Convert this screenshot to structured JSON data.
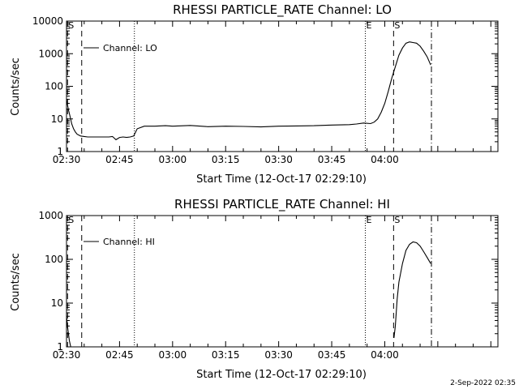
{
  "footer": {
    "timestamp": "2-Sep-2022 02:35"
  },
  "chart_data": [
    {
      "type": "line",
      "title": "RHESSI PARTICLE_RATE Channel: LO",
      "xlabel": "Start Time (12-Oct-17 02:29:10)",
      "ylabel": "Counts/sec",
      "xscale": "linear",
      "yscale": "log",
      "xlim_minutes": [
        0,
        122
      ],
      "ylim": [
        1,
        10000
      ],
      "x_tick_labels": [
        "02:30",
        "02:45",
        "03:00",
        "03:15",
        "03:30",
        "03:45",
        "04:00"
      ],
      "x_tick_minutes": [
        0,
        15,
        30,
        45,
        60,
        75,
        90
      ],
      "y_tick_labels": [
        "1",
        "10",
        "100",
        "1000",
        "10000"
      ],
      "y_tick_values": [
        1,
        10,
        100,
        1000,
        10000
      ],
      "legend": {
        "entries": [
          "Channel: LO"
        ],
        "placement": "top-left"
      },
      "markers": [
        {
          "label": "S",
          "minute": 0.3,
          "style": "dashed"
        },
        {
          "label": "",
          "minute": 4.3,
          "style": "dashed"
        },
        {
          "label": "",
          "minute": 19.2,
          "style": "dotted"
        },
        {
          "label": "E",
          "minute": 84.5,
          "style": "dotted"
        },
        {
          "label": "S",
          "minute": 92.5,
          "style": "dashed"
        },
        {
          "label": "",
          "minute": 103.2,
          "style": "dashdot"
        }
      ],
      "series": [
        {
          "name": "Channel: LO",
          "x_minutes": [
            0,
            0.5,
            1,
            1.5,
            2,
            2.5,
            3,
            3.5,
            4,
            5,
            6,
            8,
            10,
            12,
            13,
            14,
            15,
            16,
            17,
            18,
            19,
            20,
            22,
            25,
            28,
            30,
            35,
            40,
            45,
            50,
            55,
            60,
            65,
            70,
            75,
            80,
            82,
            84,
            86,
            87,
            88,
            89,
            90,
            91,
            92,
            93,
            94,
            95,
            96,
            97,
            98,
            99,
            100,
            101,
            102,
            103
          ],
          "y": [
            40,
            20,
            12,
            7,
            5,
            4,
            3.4,
            3.2,
            3,
            2.9,
            2.8,
            2.8,
            2.8,
            2.8,
            2.9,
            2.3,
            2.7,
            2.8,
            2.7,
            2.8,
            3,
            5,
            6,
            6,
            6.2,
            6,
            6.3,
            5.8,
            6,
            5.9,
            5.7,
            6,
            6.1,
            6.2,
            6.5,
            6.7,
            7,
            7.5,
            7.2,
            8,
            10,
            16,
            30,
            70,
            180,
            400,
            900,
            1500,
            2100,
            2300,
            2200,
            2100,
            1700,
            1200,
            800,
            450
          ]
        }
      ]
    },
    {
      "type": "line",
      "title": "RHESSI PARTICLE_RATE Channel: HI",
      "xlabel": "Start Time (12-Oct-17 02:29:10)",
      "ylabel": "Counts/sec",
      "xscale": "linear",
      "yscale": "log",
      "xlim_minutes": [
        0,
        122
      ],
      "ylim": [
        1,
        1000
      ],
      "x_tick_labels": [
        "02:30",
        "02:45",
        "03:00",
        "03:15",
        "03:30",
        "03:45",
        "04:00"
      ],
      "x_tick_minutes": [
        0,
        15,
        30,
        45,
        60,
        75,
        90
      ],
      "y_tick_labels": [
        "1",
        "10",
        "100",
        "1000"
      ],
      "y_tick_values": [
        1,
        10,
        100,
        1000
      ],
      "legend": {
        "entries": [
          "Channel: HI"
        ],
        "placement": "top-left"
      },
      "markers": [
        {
          "label": "S",
          "minute": 0.3,
          "style": "dashed"
        },
        {
          "label": "",
          "minute": 4.3,
          "style": "dashed"
        },
        {
          "label": "",
          "minute": 19.2,
          "style": "dotted"
        },
        {
          "label": "E",
          "minute": 84.5,
          "style": "dotted"
        },
        {
          "label": "S",
          "minute": 92.5,
          "style": "dashed"
        },
        {
          "label": "",
          "minute": 103.2,
          "style": "dashdot"
        }
      ],
      "series": [
        {
          "name": "Channel: HI",
          "x_minutes": [
            0,
            0.4,
            0.8,
            1.2,
            92.6,
            93,
            93.5,
            94,
            95,
            96,
            97,
            98,
            99,
            100,
            101,
            102,
            103
          ],
          "y": [
            5,
            2.5,
            1.4,
            1,
            1.6,
            3,
            12,
            30,
            80,
            160,
            220,
            250,
            240,
            200,
            150,
            110,
            80
          ]
        }
      ]
    }
  ]
}
